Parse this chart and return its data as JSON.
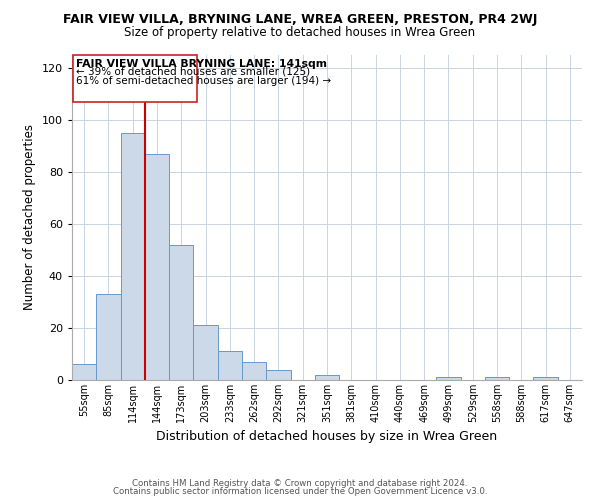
{
  "title": "FAIR VIEW VILLA, BRYNING LANE, WREA GREEN, PRESTON, PR4 2WJ",
  "subtitle": "Size of property relative to detached houses in Wrea Green",
  "xlabel": "Distribution of detached houses by size in Wrea Green",
  "ylabel": "Number of detached properties",
  "bar_color": "#ccd9e8",
  "bar_edge_color": "#6699cc",
  "bin_labels": [
    "55sqm",
    "85sqm",
    "114sqm",
    "144sqm",
    "173sqm",
    "203sqm",
    "233sqm",
    "262sqm",
    "292sqm",
    "321sqm",
    "351sqm",
    "381sqm",
    "410sqm",
    "440sqm",
    "469sqm",
    "499sqm",
    "529sqm",
    "558sqm",
    "588sqm",
    "617sqm",
    "647sqm"
  ],
  "bar_heights": [
    6,
    33,
    95,
    87,
    52,
    21,
    11,
    7,
    4,
    0,
    2,
    0,
    0,
    0,
    0,
    1,
    0,
    1,
    0,
    1,
    0
  ],
  "vline_color": "#cc0000",
  "ylim": [
    0,
    125
  ],
  "yticks": [
    0,
    20,
    40,
    60,
    80,
    100,
    120
  ],
  "annotation_title": "FAIR VIEW VILLA BRYNING LANE: 141sqm",
  "annotation_line1": "← 39% of detached houses are smaller (125)",
  "annotation_line2": "61% of semi-detached houses are larger (194) →",
  "footer1": "Contains HM Land Registry data © Crown copyright and database right 2024.",
  "footer2": "Contains public sector information licensed under the Open Government Licence v3.0.",
  "background_color": "#ffffff",
  "grid_color": "#c8d4e0"
}
